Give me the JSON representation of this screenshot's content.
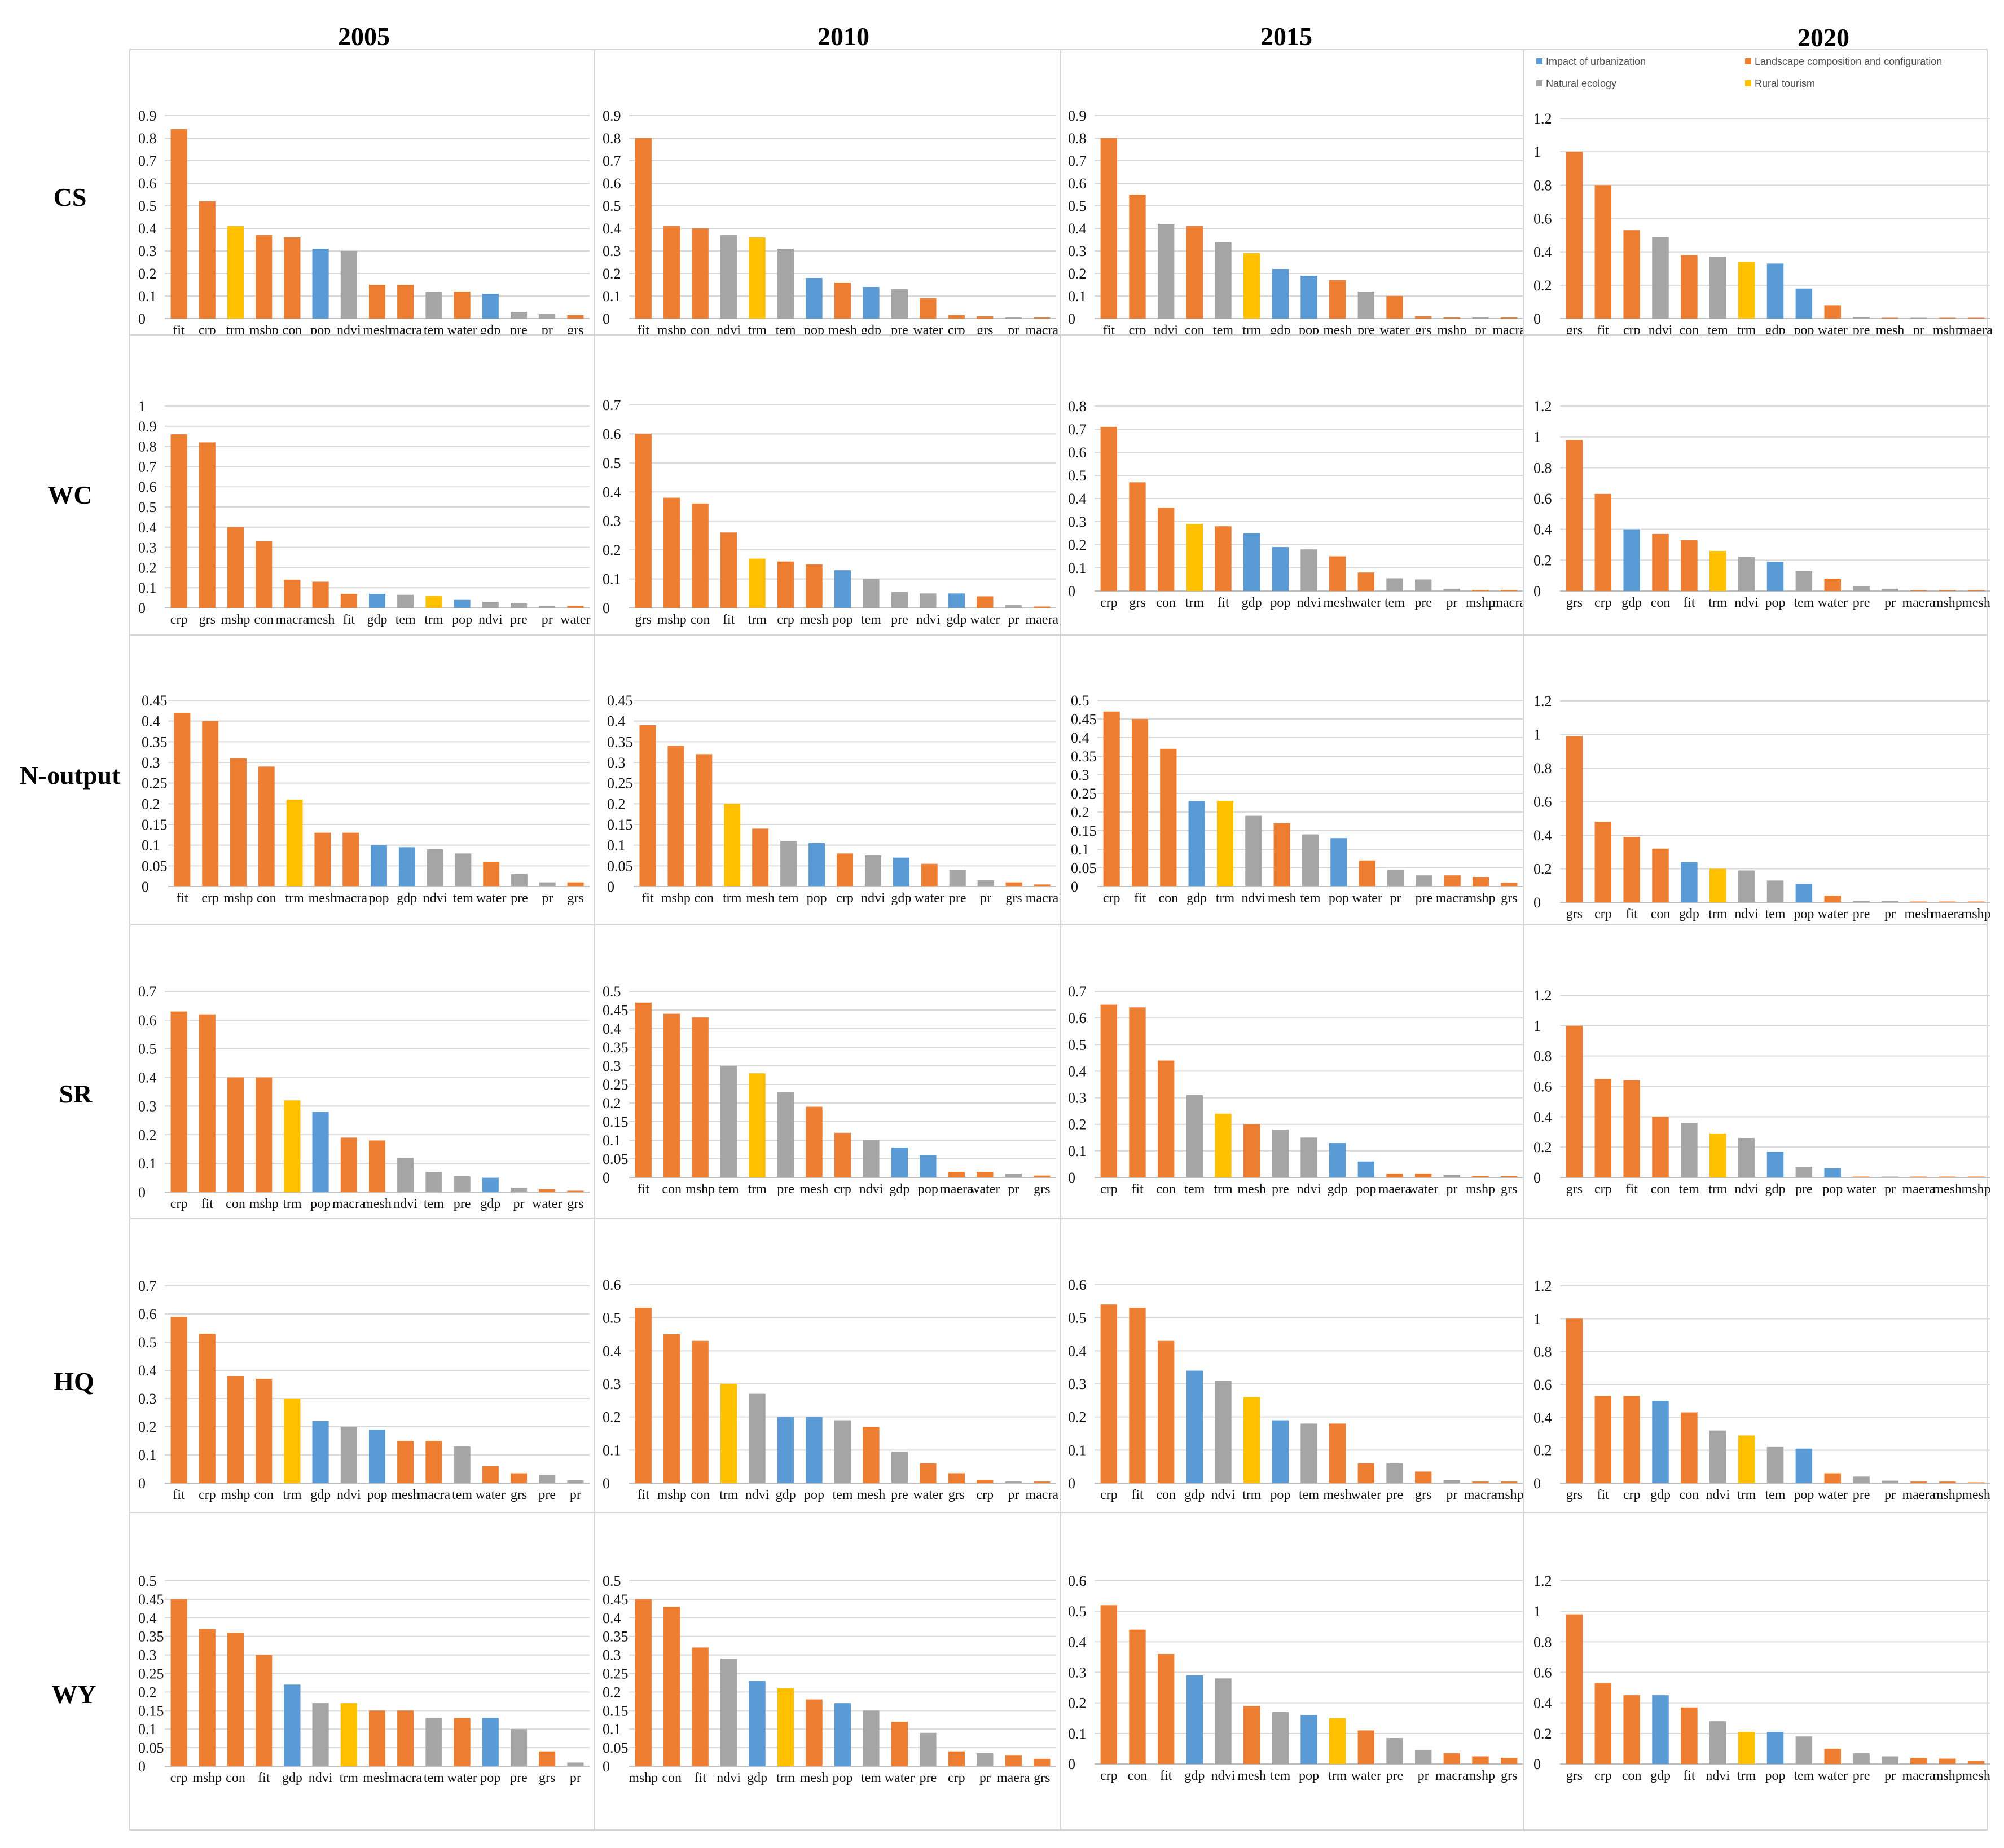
{
  "years": [
    "2005",
    "2010",
    "2015",
    "2020"
  ],
  "services": [
    "CS",
    "WC",
    "N-output",
    "SR",
    "HQ",
    "WY"
  ],
  "groups": {
    "urb": {
      "label": "Impact of urbanization",
      "color": "#5b9bd5"
    },
    "land": {
      "label": "Landscape composition and configuration",
      "color": "#ed7d31"
    },
    "nat": {
      "label": "Natural ecology",
      "color": "#a5a5a5"
    },
    "tour": {
      "label": "Rural tourism",
      "color": "#ffc000"
    }
  },
  "variable_groups": {
    "fit": "land",
    "crp": "land",
    "grs": "land",
    "con": "land",
    "mshp": "land",
    "mesh": "land",
    "maera": "land",
    "macra": "land",
    "water": "land",
    "pop": "urb",
    "gdp": "urb",
    "ndvi": "nat",
    "tem": "nat",
    "pre": "nat",
    "pr": "nat",
    "trm": "tour"
  },
  "legend": [
    {
      "key": "urb",
      "label": "Impact of urbanization"
    },
    {
      "key": "land",
      "label": "Landscape composition and configuration"
    },
    {
      "key": "nat",
      "label": "Natural ecology"
    },
    {
      "key": "tour",
      "label": "Rural tourism"
    }
  ],
  "chart_data": [
    {
      "type": "bar",
      "service": "CS",
      "year": "2005",
      "ylim": [
        0,
        0.9
      ],
      "yticks": [
        "0",
        "0.1",
        "0.2",
        "0.3",
        "0.4",
        "0.5",
        "0.6",
        "0.7",
        "0.8",
        "0.9"
      ],
      "categories": [
        "fit",
        "crp",
        "trm",
        "mshp",
        "con",
        "pop",
        "ndvi",
        "mesh",
        "macra",
        "tem",
        "water",
        "gdp",
        "pre",
        "pr",
        "grs"
      ],
      "values": [
        0.84,
        0.52,
        0.41,
        0.37,
        0.36,
        0.31,
        0.3,
        0.15,
        0.15,
        0.12,
        0.12,
        0.11,
        0.03,
        0.02,
        0.015
      ]
    },
    {
      "type": "bar",
      "service": "CS",
      "year": "2010",
      "ylim": [
        0,
        0.9
      ],
      "yticks": [
        "0",
        "0.1",
        "0.2",
        "0.3",
        "0.4",
        "0.5",
        "0.6",
        "0.7",
        "0.8",
        "0.9"
      ],
      "categories": [
        "fit",
        "mshp",
        "con",
        "ndvi",
        "trm",
        "tem",
        "pop",
        "mesh",
        "gdp",
        "pre",
        "water",
        "crp",
        "grs",
        "pr",
        "macra"
      ],
      "values": [
        0.8,
        0.41,
        0.4,
        0.37,
        0.36,
        0.31,
        0.18,
        0.16,
        0.14,
        0.13,
        0.09,
        0.015,
        0.01,
        0.005,
        0.005
      ]
    },
    {
      "type": "bar",
      "service": "CS",
      "year": "2015",
      "ylim": [
        0,
        0.9
      ],
      "yticks": [
        "0",
        "0.1",
        "0.2",
        "0.3",
        "0.4",
        "0.5",
        "0.6",
        "0.7",
        "0.8",
        "0.9"
      ],
      "categories": [
        "fit",
        "crp",
        "ndvi",
        "con",
        "tem",
        "trm",
        "gdp",
        "pop",
        "mesh",
        "pre",
        "water",
        "grs",
        "mshp",
        "pr",
        "macra"
      ],
      "values": [
        0.8,
        0.55,
        0.42,
        0.41,
        0.34,
        0.29,
        0.22,
        0.19,
        0.17,
        0.12,
        0.1,
        0.01,
        0.005,
        0.005,
        0.005
      ]
    },
    {
      "type": "bar",
      "service": "CS",
      "year": "2020",
      "ylim": [
        0,
        1.2
      ],
      "yticks": [
        "0",
        "0.2",
        "0.4",
        "0.6",
        "0.8",
        "1",
        "1.2"
      ],
      "categories": [
        "grs",
        "fit",
        "crp",
        "ndvi",
        "con",
        "tem",
        "trm",
        "gdp",
        "pop",
        "water",
        "pre",
        "mesh",
        "pr",
        "mshp",
        "maera"
      ],
      "values": [
        1.0,
        0.8,
        0.53,
        0.49,
        0.38,
        0.37,
        0.34,
        0.33,
        0.18,
        0.08,
        0.01,
        0.005,
        0.005,
        0.005,
        0.005
      ]
    },
    {
      "type": "bar",
      "service": "WC",
      "year": "2005",
      "ylim": [
        0,
        1
      ],
      "yticks": [
        "0",
        "0.1",
        "0.2",
        "0.3",
        "0.4",
        "0.5",
        "0.6",
        "0.7",
        "0.8",
        "0.9",
        "1"
      ],
      "categories": [
        "crp",
        "grs",
        "mshp",
        "con",
        "macra",
        "mesh",
        "fit",
        "gdp",
        "tem",
        "trm",
        "pop",
        "ndvi",
        "pre",
        "pr",
        "water"
      ],
      "values": [
        0.86,
        0.82,
        0.4,
        0.33,
        0.14,
        0.13,
        0.07,
        0.07,
        0.065,
        0.06,
        0.04,
        0.03,
        0.025,
        0.01,
        0.01
      ]
    },
    {
      "type": "bar",
      "service": "WC",
      "year": "2010",
      "ylim": [
        0,
        0.7
      ],
      "yticks": [
        "0",
        "0.1",
        "0.2",
        "0.3",
        "0.4",
        "0.5",
        "0.6",
        "0.7"
      ],
      "categories": [
        "grs",
        "mshp",
        "con",
        "fit",
        "trm",
        "crp",
        "mesh",
        "pop",
        "tem",
        "pre",
        "ndvi",
        "gdp",
        "water",
        "pr",
        "maera"
      ],
      "values": [
        0.6,
        0.38,
        0.36,
        0.26,
        0.17,
        0.16,
        0.15,
        0.13,
        0.1,
        0.055,
        0.05,
        0.05,
        0.04,
        0.01,
        0.005
      ]
    },
    {
      "type": "bar",
      "service": "WC",
      "year": "2015",
      "ylim": [
        0,
        0.8
      ],
      "yticks": [
        "0",
        "0.1",
        "0.2",
        "0.3",
        "0.4",
        "0.5",
        "0.6",
        "0.7",
        "0.8"
      ],
      "categories": [
        "crp",
        "grs",
        "con",
        "trm",
        "fit",
        "gdp",
        "pop",
        "ndvi",
        "mesh",
        "water",
        "tem",
        "pre",
        "pr",
        "mshp",
        "macra"
      ],
      "values": [
        0.71,
        0.47,
        0.36,
        0.29,
        0.28,
        0.25,
        0.19,
        0.18,
        0.15,
        0.08,
        0.055,
        0.05,
        0.01,
        0.005,
        0.005
      ]
    },
    {
      "type": "bar",
      "service": "WC",
      "year": "2020",
      "ylim": [
        0,
        1.2
      ],
      "yticks": [
        "0",
        "0.2",
        "0.4",
        "0.6",
        "0.8",
        "1",
        "1.2"
      ],
      "categories": [
        "grs",
        "crp",
        "gdp",
        "con",
        "fit",
        "trm",
        "ndvi",
        "pop",
        "tem",
        "water",
        "pre",
        "pr",
        "maera",
        "mshp",
        "mesh"
      ],
      "values": [
        0.98,
        0.63,
        0.4,
        0.37,
        0.33,
        0.26,
        0.22,
        0.19,
        0.13,
        0.08,
        0.03,
        0.015,
        0.005,
        0.005,
        0.005
      ]
    },
    {
      "type": "bar",
      "service": "N-output",
      "year": "2005",
      "ylim": [
        0,
        0.45
      ],
      "yticks": [
        "0",
        "0.05",
        "0.1",
        "0.15",
        "0.2",
        "0.25",
        "0.3",
        "0.35",
        "0.4",
        "0.45"
      ],
      "categories": [
        "fit",
        "crp",
        "mshp",
        "con",
        "trm",
        "mesh",
        "macra",
        "pop",
        "gdp",
        "ndvi",
        "tem",
        "water",
        "pre",
        "pr",
        "grs"
      ],
      "values": [
        0.42,
        0.4,
        0.31,
        0.29,
        0.21,
        0.13,
        0.13,
        0.1,
        0.095,
        0.09,
        0.08,
        0.06,
        0.03,
        0.01,
        0.01
      ]
    },
    {
      "type": "bar",
      "service": "N-output",
      "year": "2010",
      "ylim": [
        0,
        0.45
      ],
      "yticks": [
        "0",
        "0.05",
        "0.1",
        "0.15",
        "0.2",
        "0.25",
        "0.3",
        "0.35",
        "0.4",
        "0.45"
      ],
      "categories": [
        "fit",
        "mshp",
        "con",
        "trm",
        "mesh",
        "tem",
        "pop",
        "crp",
        "ndvi",
        "gdp",
        "water",
        "pre",
        "pr",
        "grs",
        "macra"
      ],
      "values": [
        0.39,
        0.34,
        0.32,
        0.2,
        0.14,
        0.11,
        0.105,
        0.08,
        0.075,
        0.07,
        0.055,
        0.04,
        0.015,
        0.01,
        0.005
      ]
    },
    {
      "type": "bar",
      "service": "N-output",
      "year": "2015",
      "ylim": [
        0,
        0.5
      ],
      "yticks": [
        "0",
        "0.05",
        "0.1",
        "0.15",
        "0.2",
        "0.25",
        "0.3",
        "0.35",
        "0.4",
        "0.45",
        "0.5"
      ],
      "categories": [
        "crp",
        "fit",
        "con",
        "gdp",
        "trm",
        "ndvi",
        "mesh",
        "tem",
        "pop",
        "water",
        "pr",
        "pre",
        "macra",
        "mshp",
        "grs"
      ],
      "values": [
        0.47,
        0.45,
        0.37,
        0.23,
        0.23,
        0.19,
        0.17,
        0.14,
        0.13,
        0.07,
        0.045,
        0.03,
        0.03,
        0.025,
        0.01
      ]
    },
    {
      "type": "bar",
      "service": "N-output",
      "year": "2020",
      "ylim": [
        0,
        1.2
      ],
      "yticks": [
        "0",
        "0.2",
        "0.4",
        "0.6",
        "0.8",
        "1",
        "1.2"
      ],
      "categories": [
        "grs",
        "crp",
        "fit",
        "con",
        "gdp",
        "trm",
        "ndvi",
        "tem",
        "pop",
        "water",
        "pre",
        "pr",
        "mesh",
        "maera",
        "mshp"
      ],
      "values": [
        0.99,
        0.48,
        0.39,
        0.32,
        0.24,
        0.2,
        0.19,
        0.13,
        0.11,
        0.04,
        0.01,
        0.01,
        0.005,
        0.005,
        0.005
      ]
    },
    {
      "type": "bar",
      "service": "SR",
      "year": "2005",
      "ylim": [
        0,
        0.7
      ],
      "yticks": [
        "0",
        "0.1",
        "0.2",
        "0.3",
        "0.4",
        "0.5",
        "0.6",
        "0.7"
      ],
      "categories": [
        "crp",
        "fit",
        "con",
        "mshp",
        "trm",
        "pop",
        "macra",
        "mesh",
        "ndvi",
        "tem",
        "pre",
        "gdp",
        "pr",
        "water",
        "grs"
      ],
      "values": [
        0.63,
        0.62,
        0.4,
        0.4,
        0.32,
        0.28,
        0.19,
        0.18,
        0.12,
        0.07,
        0.055,
        0.05,
        0.015,
        0.01,
        0.005
      ]
    },
    {
      "type": "bar",
      "service": "SR",
      "year": "2010",
      "ylim": [
        0,
        0.5
      ],
      "yticks": [
        "0",
        "0.05",
        "0.1",
        "0.15",
        "0.2",
        "0.25",
        "0.3",
        "0.35",
        "0.4",
        "0.45",
        "0.5"
      ],
      "categories": [
        "fit",
        "con",
        "mshp",
        "tem",
        "trm",
        "pre",
        "mesh",
        "crp",
        "ndvi",
        "gdp",
        "pop",
        "maera",
        "water",
        "pr",
        "grs"
      ],
      "values": [
        0.47,
        0.44,
        0.43,
        0.3,
        0.28,
        0.23,
        0.19,
        0.12,
        0.1,
        0.08,
        0.06,
        0.015,
        0.015,
        0.01,
        0.005
      ]
    },
    {
      "type": "bar",
      "service": "SR",
      "year": "2015",
      "ylim": [
        0,
        0.7
      ],
      "yticks": [
        "0",
        "0.1",
        "0.2",
        "0.3",
        "0.4",
        "0.5",
        "0.6",
        "0.7"
      ],
      "categories": [
        "crp",
        "fit",
        "con",
        "tem",
        "trm",
        "mesh",
        "pre",
        "ndvi",
        "gdp",
        "pop",
        "maera",
        "water",
        "pr",
        "mshp",
        "grs"
      ],
      "values": [
        0.65,
        0.64,
        0.44,
        0.31,
        0.24,
        0.2,
        0.18,
        0.15,
        0.13,
        0.06,
        0.015,
        0.015,
        0.01,
        0.005,
        0.005
      ]
    },
    {
      "type": "bar",
      "service": "SR",
      "year": "2020",
      "ylim": [
        0,
        1.2
      ],
      "yticks": [
        "0",
        "0.2",
        "0.4",
        "0.6",
        "0.8",
        "1",
        "1.2"
      ],
      "categories": [
        "grs",
        "crp",
        "fit",
        "con",
        "tem",
        "trm",
        "ndvi",
        "gdp",
        "pre",
        "pop",
        "water",
        "pr",
        "maera",
        "mesh",
        "mshp"
      ],
      "values": [
        1.0,
        0.65,
        0.64,
        0.4,
        0.36,
        0.29,
        0.26,
        0.17,
        0.07,
        0.06,
        0.005,
        0.005,
        0.005,
        0.005,
        0.005
      ]
    },
    {
      "type": "bar",
      "service": "HQ",
      "year": "2005",
      "ylim": [
        0,
        0.7
      ],
      "yticks": [
        "0",
        "0.1",
        "0.2",
        "0.3",
        "0.4",
        "0.5",
        "0.6",
        "0.7"
      ],
      "categories": [
        "fit",
        "crp",
        "mshp",
        "con",
        "trm",
        "gdp",
        "ndvi",
        "pop",
        "mesh",
        "macra",
        "tem",
        "water",
        "grs",
        "pre",
        "pr"
      ],
      "values": [
        0.59,
        0.53,
        0.38,
        0.37,
        0.3,
        0.22,
        0.2,
        0.19,
        0.15,
        0.15,
        0.13,
        0.06,
        0.035,
        0.03,
        0.01
      ]
    },
    {
      "type": "bar",
      "service": "HQ",
      "year": "2010",
      "ylim": [
        0,
        0.6
      ],
      "yticks": [
        "0",
        "0.1",
        "0.2",
        "0.3",
        "0.4",
        "0.5",
        "0.6"
      ],
      "categories": [
        "fit",
        "mshp",
        "con",
        "trm",
        "ndvi",
        "gdp",
        "pop",
        "tem",
        "mesh",
        "pre",
        "water",
        "grs",
        "crp",
        "pr",
        "macra"
      ],
      "values": [
        0.53,
        0.45,
        0.43,
        0.3,
        0.27,
        0.2,
        0.2,
        0.19,
        0.17,
        0.095,
        0.06,
        0.03,
        0.01,
        0.005,
        0.005
      ]
    },
    {
      "type": "bar",
      "service": "HQ",
      "year": "2015",
      "ylim": [
        0,
        0.6
      ],
      "yticks": [
        "0",
        "0.1",
        "0.2",
        "0.3",
        "0.4",
        "0.5",
        "0.6"
      ],
      "categories": [
        "crp",
        "fit",
        "con",
        "gdp",
        "ndvi",
        "trm",
        "pop",
        "tem",
        "mesh",
        "water",
        "pre",
        "grs",
        "pr",
        "macra",
        "mshp"
      ],
      "values": [
        0.54,
        0.53,
        0.43,
        0.34,
        0.31,
        0.26,
        0.19,
        0.18,
        0.18,
        0.06,
        0.06,
        0.035,
        0.01,
        0.005,
        0.005
      ]
    },
    {
      "type": "bar",
      "service": "HQ",
      "year": "2020",
      "ylim": [
        0,
        1.2
      ],
      "yticks": [
        "0",
        "0.2",
        "0.4",
        "0.6",
        "0.8",
        "1",
        "1.2"
      ],
      "categories": [
        "grs",
        "fit",
        "crp",
        "gdp",
        "con",
        "ndvi",
        "trm",
        "tem",
        "pop",
        "water",
        "pre",
        "pr",
        "maera",
        "mshp",
        "mesh"
      ],
      "values": [
        1.0,
        0.53,
        0.53,
        0.5,
        0.43,
        0.32,
        0.29,
        0.22,
        0.21,
        0.06,
        0.04,
        0.015,
        0.01,
        0.01,
        0.005
      ]
    },
    {
      "type": "bar",
      "service": "WY",
      "year": "2005",
      "ylim": [
        0,
        0.5
      ],
      "yticks": [
        "0",
        "0.05",
        "0.1",
        "0.15",
        "0.2",
        "0.25",
        "0.3",
        "0.35",
        "0.4",
        "0.45",
        "0.5"
      ],
      "categories": [
        "crp",
        "mshp",
        "con",
        "fit",
        "gdp",
        "ndvi",
        "trm",
        "mesh",
        "macra",
        "tem",
        "water",
        "pop",
        "pre",
        "grs",
        "pr"
      ],
      "values": [
        0.45,
        0.37,
        0.36,
        0.3,
        0.22,
        0.17,
        0.17,
        0.15,
        0.15,
        0.13,
        0.13,
        0.13,
        0.1,
        0.04,
        0.01
      ]
    },
    {
      "type": "bar",
      "service": "WY",
      "year": "2010",
      "ylim": [
        0,
        0.5
      ],
      "yticks": [
        "0",
        "0.05",
        "0.1",
        "0.15",
        "0.2",
        "0.25",
        "0.3",
        "0.35",
        "0.4",
        "0.45",
        "0.5"
      ],
      "categories": [
        "mshp",
        "con",
        "fit",
        "ndvi",
        "gdp",
        "trm",
        "mesh",
        "pop",
        "tem",
        "water",
        "pre",
        "crp",
        "pr",
        "maera",
        "grs"
      ],
      "values": [
        0.45,
        0.43,
        0.32,
        0.29,
        0.23,
        0.21,
        0.18,
        0.17,
        0.15,
        0.12,
        0.09,
        0.04,
        0.035,
        0.03,
        0.02
      ]
    },
    {
      "type": "bar",
      "service": "WY",
      "year": "2015",
      "ylim": [
        0,
        0.6
      ],
      "yticks": [
        "0",
        "0.1",
        "0.2",
        "0.3",
        "0.4",
        "0.5",
        "0.6"
      ],
      "categories": [
        "crp",
        "con",
        "fit",
        "gdp",
        "ndvi",
        "mesh",
        "tem",
        "pop",
        "trm",
        "water",
        "pre",
        "pr",
        "macra",
        "mshp",
        "grs"
      ],
      "values": [
        0.52,
        0.44,
        0.36,
        0.29,
        0.28,
        0.19,
        0.17,
        0.16,
        0.15,
        0.11,
        0.085,
        0.045,
        0.035,
        0.025,
        0.02
      ]
    },
    {
      "type": "bar",
      "service": "WY",
      "year": "2020",
      "ylim": [
        0,
        1.2
      ],
      "yticks": [
        "0",
        "0.2",
        "0.4",
        "0.6",
        "0.8",
        "1",
        "1.2"
      ],
      "categories": [
        "grs",
        "crp",
        "con",
        "gdp",
        "fit",
        "ndvi",
        "trm",
        "pop",
        "tem",
        "water",
        "pre",
        "pr",
        "maera",
        "mshp",
        "mesh"
      ],
      "values": [
        0.98,
        0.53,
        0.45,
        0.45,
        0.37,
        0.28,
        0.21,
        0.21,
        0.18,
        0.1,
        0.07,
        0.05,
        0.04,
        0.035,
        0.02
      ]
    }
  ]
}
